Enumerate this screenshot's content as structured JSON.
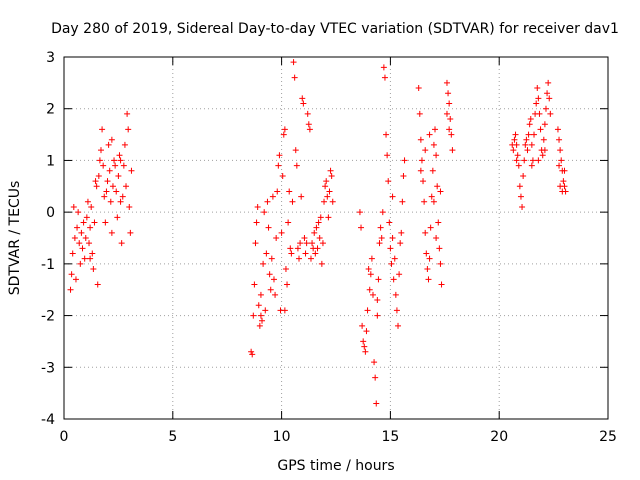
{
  "chart_data": {
    "type": "scatter",
    "title": "Day 280 of 2019, Sidereal Day-to-day VTEC variation (SDTVAR) for receiver dav1",
    "xlabel": "GPS time / hours",
    "ylabel": "SDTVAR / TECUs",
    "xlim": [
      0,
      25
    ],
    "ylim": [
      -4,
      3
    ],
    "xticks": [
      "0",
      "5",
      "10",
      "15",
      "20",
      "25"
    ],
    "yticks": [
      "-4",
      "-3",
      "-2",
      "-1",
      "0",
      "1",
      "2",
      "3"
    ],
    "grid": true,
    "marker": "+",
    "color": "#ff0000",
    "series": [
      {
        "name": "dav1",
        "points": [
          [
            0.3,
            -1.5
          ],
          [
            0.35,
            -1.2
          ],
          [
            0.4,
            -0.8
          ],
          [
            0.45,
            0.1
          ],
          [
            0.5,
            -0.5
          ],
          [
            0.55,
            -1.3
          ],
          [
            0.6,
            -0.3
          ],
          [
            0.65,
            0.0
          ],
          [
            0.7,
            -0.6
          ],
          [
            0.75,
            -1.0
          ],
          [
            0.8,
            -0.4
          ],
          [
            0.85,
            -0.7
          ],
          [
            0.9,
            -0.2
          ],
          [
            0.95,
            -0.9
          ],
          [
            1.0,
            -0.5
          ],
          [
            1.05,
            -0.1
          ],
          [
            1.1,
            0.2
          ],
          [
            1.15,
            -0.6
          ],
          [
            1.2,
            -0.3
          ],
          [
            1.25,
            0.1
          ],
          [
            1.3,
            -0.8
          ],
          [
            1.35,
            -1.1
          ],
          [
            1.4,
            -0.2
          ],
          [
            1.45,
            0.6
          ],
          [
            1.5,
            0.5
          ],
          [
            1.55,
            -1.4
          ],
          [
            1.6,
            0.7
          ],
          [
            1.65,
            1.0
          ],
          [
            1.7,
            1.2
          ],
          [
            1.75,
            1.6
          ],
          [
            1.8,
            0.9
          ],
          [
            1.85,
            0.3
          ],
          [
            1.9,
            -0.2
          ],
          [
            1.95,
            0.4
          ],
          [
            2.0,
            0.6
          ],
          [
            2.05,
            1.3
          ],
          [
            2.1,
            0.8
          ],
          [
            2.15,
            0.2
          ],
          [
            2.2,
            -0.4
          ],
          [
            2.25,
            0.5
          ],
          [
            2.3,
            1.0
          ],
          [
            2.35,
            0.9
          ],
          [
            2.4,
            0.4
          ],
          [
            2.45,
            -0.1
          ],
          [
            2.5,
            0.7
          ],
          [
            2.55,
            1.1
          ],
          [
            2.6,
            0.2
          ],
          [
            2.65,
            -0.6
          ],
          [
            2.7,
            0.3
          ],
          [
            2.75,
            0.9
          ],
          [
            2.8,
            1.3
          ],
          [
            2.85,
            0.5
          ],
          [
            2.9,
            1.9
          ],
          [
            2.95,
            1.6
          ],
          [
            3.0,
            0.1
          ],
          [
            3.05,
            -0.4
          ],
          [
            3.1,
            0.8
          ],
          [
            1.2,
            -0.9
          ],
          [
            2.2,
            1.4
          ],
          [
            2.6,
            1.0
          ],
          [
            8.6,
            -2.7
          ],
          [
            8.65,
            -2.75
          ],
          [
            8.7,
            -2.0
          ],
          [
            8.75,
            -1.4
          ],
          [
            8.8,
            -0.6
          ],
          [
            8.85,
            -0.2
          ],
          [
            8.9,
            0.1
          ],
          [
            8.95,
            -1.8
          ],
          [
            9.0,
            -2.2
          ],
          [
            9.05,
            -1.6
          ],
          [
            9.1,
            -2.1
          ],
          [
            9.15,
            -1.0
          ],
          [
            9.2,
            0.0
          ],
          [
            9.25,
            -1.9
          ],
          [
            9.3,
            -0.8
          ],
          [
            9.35,
            0.2
          ],
          [
            9.4,
            -0.3
          ],
          [
            9.45,
            -1.2
          ],
          [
            9.5,
            -1.5
          ],
          [
            9.55,
            -0.9
          ],
          [
            9.6,
            0.3
          ],
          [
            9.65,
            -1.3
          ],
          [
            9.7,
            -1.6
          ],
          [
            9.75,
            -0.5
          ],
          [
            9.8,
            0.4
          ],
          [
            9.85,
            0.9
          ],
          [
            9.9,
            1.1
          ],
          [
            9.95,
            -1.9
          ],
          [
            10.0,
            -0.4
          ],
          [
            10.05,
            0.7
          ],
          [
            10.1,
            1.5
          ],
          [
            10.15,
            1.6
          ],
          [
            10.2,
            -1.1
          ],
          [
            10.25,
            -1.4
          ],
          [
            10.3,
            -0.2
          ],
          [
            10.35,
            0.4
          ],
          [
            10.4,
            -0.7
          ],
          [
            10.45,
            -0.8
          ],
          [
            10.5,
            0.2
          ],
          [
            10.55,
            2.9
          ],
          [
            10.6,
            2.6
          ],
          [
            10.65,
            1.2
          ],
          [
            10.7,
            0.9
          ],
          [
            10.75,
            -0.7
          ],
          [
            10.8,
            -0.9
          ],
          [
            10.85,
            -0.6
          ],
          [
            10.9,
            0.3
          ],
          [
            10.95,
            2.2
          ],
          [
            11.0,
            2.1
          ],
          [
            11.05,
            -0.5
          ],
          [
            11.1,
            -0.8
          ],
          [
            11.15,
            -0.6
          ],
          [
            11.2,
            1.9
          ],
          [
            11.25,
            1.7
          ],
          [
            11.3,
            1.6
          ],
          [
            11.35,
            -0.9
          ],
          [
            11.4,
            -0.6
          ],
          [
            11.45,
            -0.7
          ],
          [
            11.5,
            -0.4
          ],
          [
            11.55,
            -0.8
          ],
          [
            11.6,
            -0.3
          ],
          [
            11.65,
            -0.7
          ],
          [
            11.7,
            -0.2
          ],
          [
            11.75,
            -0.5
          ],
          [
            11.8,
            -0.1
          ],
          [
            11.85,
            -1.0
          ],
          [
            11.9,
            -0.6
          ],
          [
            11.95,
            0.2
          ],
          [
            12.0,
            0.5
          ],
          [
            12.05,
            0.6
          ],
          [
            12.1,
            0.3
          ],
          [
            12.15,
            -0.1
          ],
          [
            12.2,
            0.4
          ],
          [
            12.25,
            0.8
          ],
          [
            12.3,
            0.7
          ],
          [
            12.35,
            0.2
          ],
          [
            10.15,
            -1.9
          ],
          [
            9.05,
            -2.0
          ],
          [
            13.6,
            0.0
          ],
          [
            13.65,
            -0.3
          ],
          [
            13.7,
            -2.2
          ],
          [
            13.75,
            -2.5
          ],
          [
            13.8,
            -2.6
          ],
          [
            13.85,
            -2.7
          ],
          [
            13.9,
            -2.3
          ],
          [
            13.95,
            -1.9
          ],
          [
            14.0,
            -1.1
          ],
          [
            14.05,
            -1.5
          ],
          [
            14.1,
            -1.2
          ],
          [
            14.15,
            -0.9
          ],
          [
            14.2,
            -1.6
          ],
          [
            14.25,
            -2.9
          ],
          [
            14.3,
            -3.2
          ],
          [
            14.35,
            -3.7
          ],
          [
            14.4,
            -1.7
          ],
          [
            14.45,
            -1.3
          ],
          [
            14.5,
            -0.6
          ],
          [
            14.55,
            -0.3
          ],
          [
            14.6,
            -0.5
          ],
          [
            14.65,
            0.0
          ],
          [
            14.7,
            2.8
          ],
          [
            14.75,
            2.6
          ],
          [
            14.8,
            1.5
          ],
          [
            14.85,
            1.1
          ],
          [
            14.9,
            0.6
          ],
          [
            14.95,
            -0.2
          ],
          [
            15.0,
            -0.7
          ],
          [
            15.05,
            -1.0
          ],
          [
            15.1,
            -0.5
          ],
          [
            15.15,
            -1.3
          ],
          [
            15.2,
            -0.9
          ],
          [
            15.25,
            -1.6
          ],
          [
            15.3,
            -1.9
          ],
          [
            15.35,
            -2.2
          ],
          [
            15.4,
            -1.2
          ],
          [
            15.45,
            -0.6
          ],
          [
            15.5,
            -0.4
          ],
          [
            15.55,
            0.2
          ],
          [
            15.6,
            0.7
          ],
          [
            15.65,
            1.0
          ],
          [
            15.1,
            0.3
          ],
          [
            14.4,
            -2.0
          ],
          [
            16.3,
            2.4
          ],
          [
            16.35,
            1.9
          ],
          [
            16.4,
            1.4
          ],
          [
            16.45,
            1.0
          ],
          [
            16.5,
            0.6
          ],
          [
            16.55,
            0.2
          ],
          [
            16.6,
            -0.4
          ],
          [
            16.65,
            -0.8
          ],
          [
            16.7,
            -1.1
          ],
          [
            16.75,
            -1.3
          ],
          [
            16.8,
            -0.9
          ],
          [
            16.85,
            -0.3
          ],
          [
            16.9,
            0.3
          ],
          [
            16.95,
            0.8
          ],
          [
            17.0,
            1.3
          ],
          [
            17.05,
            1.6
          ],
          [
            17.1,
            1.1
          ],
          [
            17.15,
            0.5
          ],
          [
            17.2,
            -0.2
          ],
          [
            17.25,
            -0.7
          ],
          [
            17.3,
            -1.0
          ],
          [
            17.35,
            -1.4
          ],
          [
            16.4,
            0.8
          ],
          [
            16.6,
            1.2
          ],
          [
            16.8,
            1.5
          ],
          [
            17.0,
            0.2
          ],
          [
            17.1,
            -0.5
          ],
          [
            17.3,
            0.4
          ],
          [
            17.6,
            2.5
          ],
          [
            17.65,
            2.3
          ],
          [
            17.7,
            2.1
          ],
          [
            17.75,
            1.8
          ],
          [
            17.8,
            1.5
          ],
          [
            17.85,
            1.2
          ],
          [
            17.6,
            1.9
          ],
          [
            17.7,
            1.6
          ],
          [
            20.6,
            1.3
          ],
          [
            20.65,
            1.2
          ],
          [
            20.7,
            1.4
          ],
          [
            20.75,
            1.5
          ],
          [
            20.8,
            1.3
          ],
          [
            20.85,
            1.1
          ],
          [
            20.9,
            0.9
          ],
          [
            20.95,
            0.5
          ],
          [
            21.0,
            0.3
          ],
          [
            21.05,
            0.1
          ],
          [
            21.1,
            0.7
          ],
          [
            21.15,
            1.0
          ],
          [
            21.2,
            1.3
          ],
          [
            21.25,
            1.4
          ],
          [
            21.3,
            1.2
          ],
          [
            21.35,
            1.5
          ],
          [
            21.4,
            1.7
          ],
          [
            21.45,
            1.8
          ],
          [
            21.5,
            1.3
          ],
          [
            21.55,
            1.0
          ],
          [
            21.6,
            1.5
          ],
          [
            21.65,
            1.9
          ],
          [
            21.7,
            2.1
          ],
          [
            21.75,
            2.4
          ],
          [
            21.8,
            2.2
          ],
          [
            21.85,
            1.9
          ],
          [
            21.9,
            1.6
          ],
          [
            21.95,
            1.2
          ],
          [
            22.0,
            1.1
          ],
          [
            22.05,
            1.4
          ],
          [
            22.1,
            1.7
          ],
          [
            22.15,
            2.0
          ],
          [
            22.2,
            2.3
          ],
          [
            22.25,
            2.5
          ],
          [
            22.3,
            2.2
          ],
          [
            22.35,
            1.9
          ],
          [
            21.5,
            0.9
          ],
          [
            21.8,
            1.0
          ],
          [
            22.1,
            1.2
          ],
          [
            20.8,
            1.0
          ],
          [
            22.7,
            1.6
          ],
          [
            22.75,
            1.4
          ],
          [
            22.8,
            1.2
          ],
          [
            22.85,
            1.0
          ],
          [
            22.9,
            0.8
          ],
          [
            22.95,
            0.6
          ],
          [
            23.0,
            0.5
          ],
          [
            23.05,
            0.4
          ],
          [
            22.8,
            0.5
          ],
          [
            22.9,
            0.4
          ],
          [
            23.0,
            0.8
          ],
          [
            22.75,
            0.9
          ]
        ]
      }
    ]
  }
}
